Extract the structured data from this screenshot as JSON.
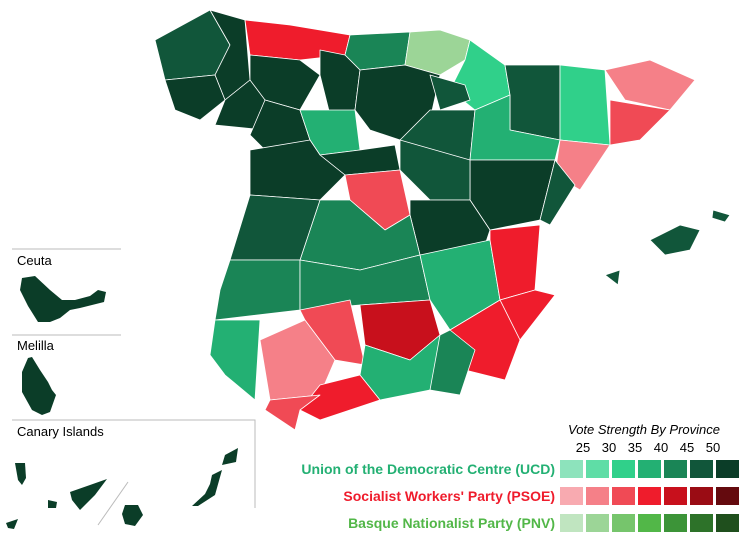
{
  "insets": {
    "ceuta": "Ceuta",
    "melilla": "Melilla",
    "canary": "Canary Islands"
  },
  "legend": {
    "title": "Vote Strength By Province",
    "ticks": [
      "25",
      "30",
      "35",
      "40",
      "45",
      "50"
    ],
    "parties": [
      {
        "name": "Union of the Democratic Centre (UCD)",
        "color": "#23b073",
        "scale": [
          "#8de3bc",
          "#5fdda6",
          "#30d08a",
          "#23b073",
          "#1a8556",
          "#11563a",
          "#0b3d28"
        ]
      },
      {
        "name": "Socialist Workers' Party (PSOE)",
        "color": "#ef1c2c",
        "scale": [
          "#f8aab0",
          "#f58088",
          "#f04a55",
          "#ef1c2c",
          "#c8101c",
          "#9a0c14",
          "#640a0e"
        ]
      },
      {
        "name": "Basque Nationalist Party (PNV)",
        "color": "#52b748",
        "scale": [
          "#c0e5c0",
          "#9cd597",
          "#76c56c",
          "#52b748",
          "#3c9438",
          "#2d7229",
          "#1f4f1d"
        ]
      }
    ]
  }
}
